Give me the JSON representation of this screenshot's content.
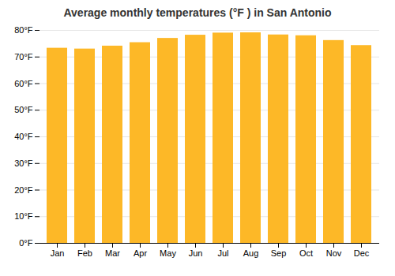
{
  "chart_data": {
    "type": "bar",
    "title": "Average monthly temperatures (°F ) in San Antonio",
    "categories": [
      "Jan",
      "Feb",
      "Mar",
      "Apr",
      "May",
      "Jun",
      "Jul",
      "Aug",
      "Sep",
      "Oct",
      "Nov",
      "Dec"
    ],
    "values": [
      73.3,
      73.0,
      74.1,
      75.4,
      77.0,
      78.2,
      79.0,
      79.1,
      78.3,
      78.0,
      76.2,
      74.3
    ],
    "color": "#FDB827",
    "ylim": [
      0,
      80
    ],
    "yticks": [
      {
        "value": 0,
        "label": "0°F"
      },
      {
        "value": 10,
        "label": "10°F"
      },
      {
        "value": 20,
        "label": "20°F"
      },
      {
        "value": 30,
        "label": "30°F"
      },
      {
        "value": 40,
        "label": "40°F"
      },
      {
        "value": 50,
        "label": "50°F"
      },
      {
        "value": 60,
        "label": "60°F"
      },
      {
        "value": 70,
        "label": "70°F"
      },
      {
        "value": 80,
        "label": "80°F"
      }
    ],
    "grid": true
  }
}
